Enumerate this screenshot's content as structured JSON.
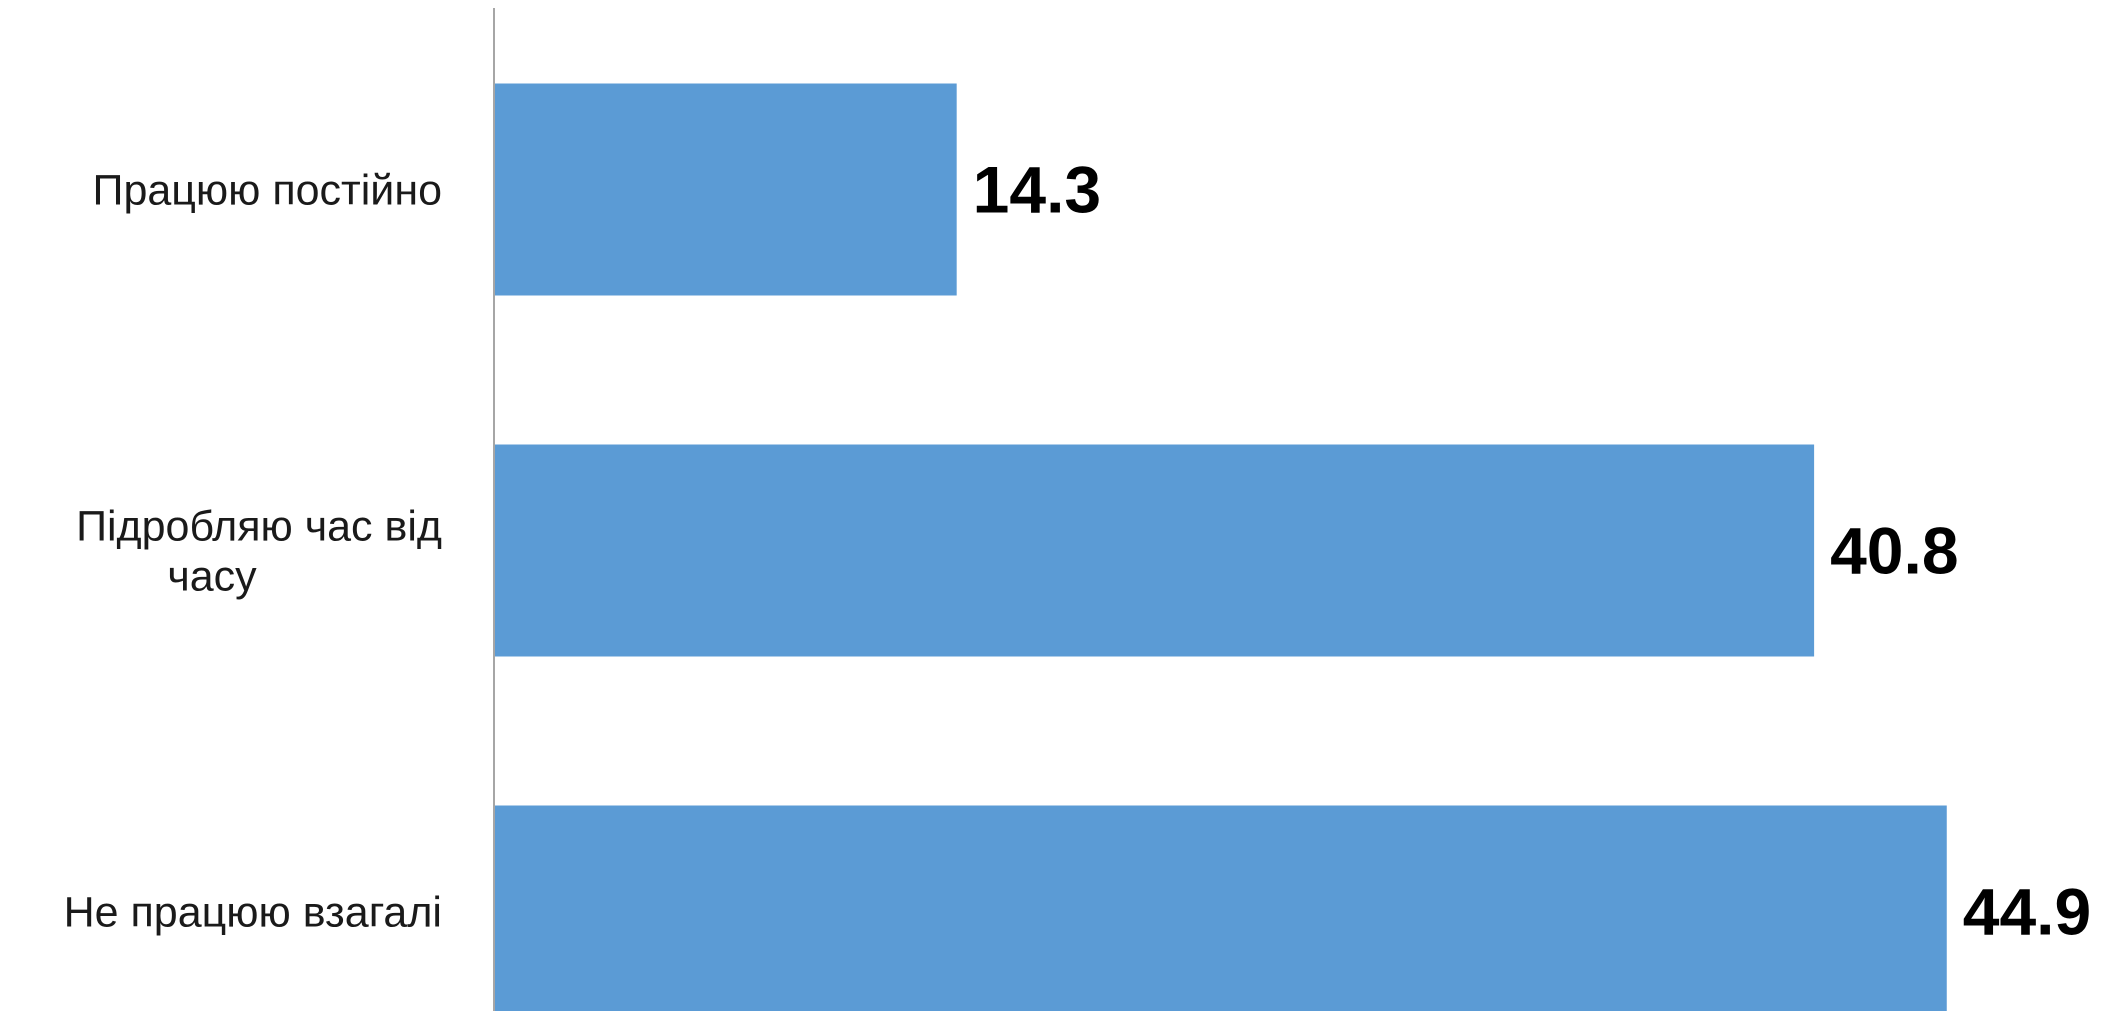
{
  "chart_data": {
    "type": "bar",
    "orientation": "horizontal",
    "categories": [
      "Працюю постійно",
      "Підробляю час від часу",
      "Не працюю взагалі"
    ],
    "category_lines": [
      [
        "Працюю постійно"
      ],
      [
        "Підробляю час від",
        "часу"
      ],
      [
        "Не працюю взагалі"
      ]
    ],
    "values": [
      14.3,
      40.8,
      44.9
    ],
    "value_labels": [
      "14.3",
      "40.8",
      "44.9"
    ],
    "xlim": [
      0,
      45
    ],
    "grid": false,
    "legend": "none",
    "bar_color": "#5B9BD5",
    "axis_color": "#A6A6A6"
  }
}
